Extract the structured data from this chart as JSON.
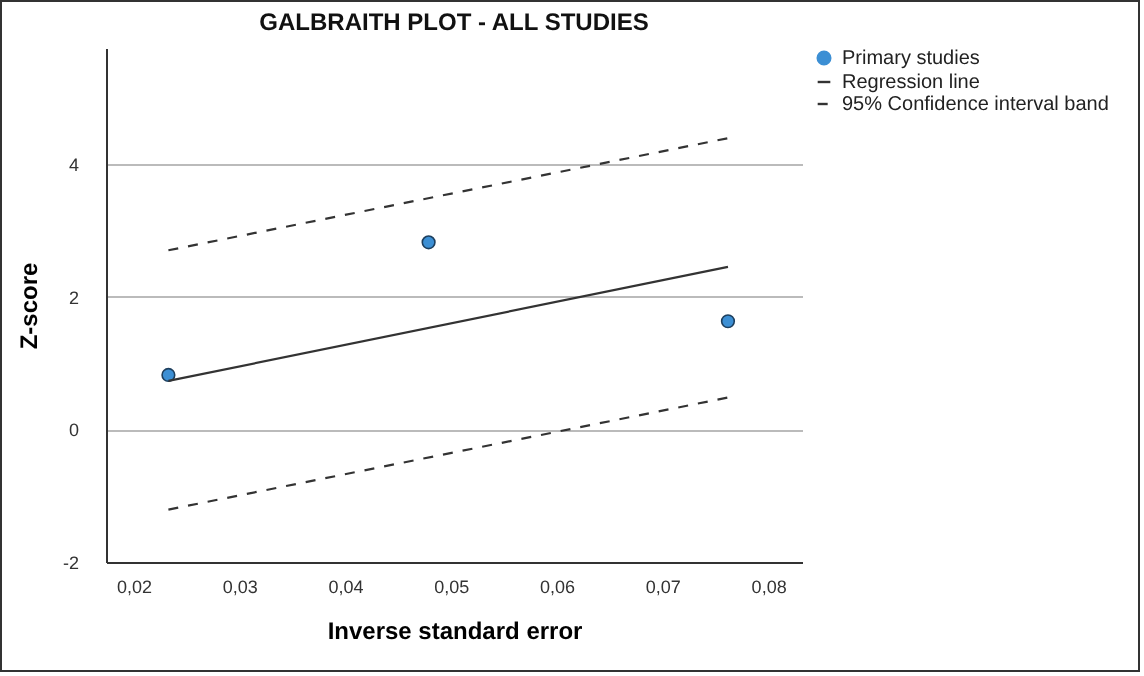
{
  "chart_data": {
    "type": "scatter",
    "title": "GALBRAITH PLOT - ALL STUDIES",
    "xlabel": "Inverse standard error",
    "ylabel": "Z-score",
    "xlim": [
      0.0174,
      0.0832
    ],
    "xticks": [
      {
        "value": 0.02,
        "label": "0,02"
      },
      {
        "value": 0.03,
        "label": "0,03"
      },
      {
        "value": 0.04,
        "label": "0,04"
      },
      {
        "value": 0.05,
        "label": "0,05"
      },
      {
        "value": 0.06,
        "label": "0,06"
      },
      {
        "value": 0.07,
        "label": "0,07"
      },
      {
        "value": 0.08,
        "label": "0,08"
      }
    ],
    "ylim": [
      -2,
      5.75
    ],
    "yticks": [
      -2,
      0,
      2,
      4
    ],
    "grid": "y",
    "legend": "top right",
    "series": [
      {
        "name": "Primary studies",
        "marker": "circle",
        "color": "#3c8fd4",
        "x": [
          0.0233,
          0.0479,
          0.0762
        ],
        "values": [
          0.82,
          2.82,
          1.63
        ]
      },
      {
        "name": "Regression line",
        "type": "line",
        "line_style": "solid",
        "color": "#333333",
        "x": [
          0.0233,
          0.0762
        ],
        "values": [
          0.73,
          2.45
        ]
      },
      {
        "name": "95% Confidence interval band",
        "type": "line",
        "line_style": "dashed",
        "color": "#333333",
        "x": [
          0.0233,
          0.0762
        ],
        "values": [
          2.7,
          4.39
        ]
      },
      {
        "type": "line",
        "line_style": "dashed",
        "color": "#333333",
        "x": [
          0.0233,
          0.0762
        ],
        "values": [
          -1.21,
          0.48
        ]
      }
    ]
  }
}
